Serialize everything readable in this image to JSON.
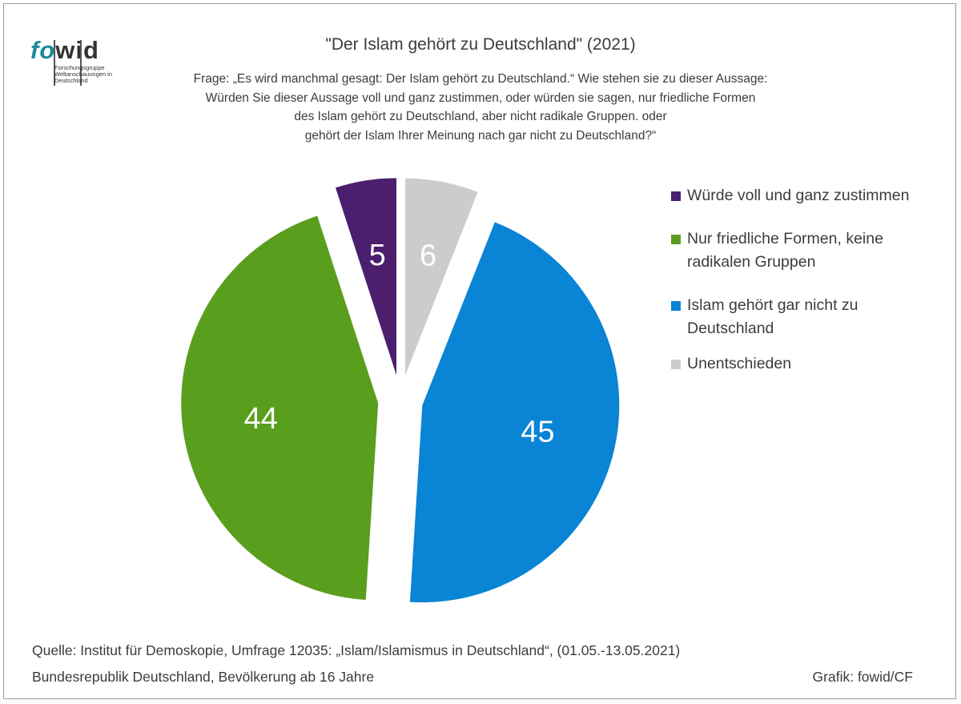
{
  "logo": {
    "fo": "fo",
    "wid": "wid",
    "subtitle": "Forschungsgruppe Weltanschauungen in Deutschland"
  },
  "title": "\"Der Islam gehört zu Deutschland\" (2021)",
  "question": "Frage: „Es wird manchmal gesagt: Der Islam gehört zu Deutschland.“  Wie stehen sie zu dieser Aussage:\nWürden Sie dieser Aussage voll und ganz zustimmen,  oder würden sie sagen, nur friedliche Formen\ndes Islam gehört zu Deutschland, aber nicht radikale Gruppen. oder\ngehört der Islam Ihrer Meinung nach gar nicht zu Deutschland?“",
  "chart_data": {
    "type": "pie",
    "title": "\"Der Islam gehört zu Deutschland\" (2021)",
    "exploded": true,
    "legend_position": "right",
    "slices": [
      {
        "label": "Würde voll und ganz zustimmen",
        "value": 5,
        "color": "#4b1e6e"
      },
      {
        "label": "Nur friedliche Formen, keine radikalen Gruppen",
        "value": 44,
        "color": "#5a9e1e"
      },
      {
        "label": "Islam gehört gar nicht zu Deutschland",
        "value": 45,
        "color": "#0a84d4"
      },
      {
        "label": "Unentschieden",
        "value": 6,
        "color": "#cccccc"
      }
    ]
  },
  "legend": [
    {
      "text": "Würde voll und ganz zustimmen",
      "color": "#4b1e6e"
    },
    {
      "text": "Nur friedliche Formen, keine radikalen Gruppen",
      "color": "#5a9e1e"
    },
    {
      "text": "Islam gehört gar nicht zu Deutschland",
      "color": "#0a84d4"
    },
    {
      "text": "Unentschieden",
      "color": "#cccccc"
    }
  ],
  "footer": {
    "source": "Quelle: Institut für Demoskopie, Umfrage 12035: „Islam/Islamismus in Deutschland“, (01.05.-13.05.2021)",
    "population": "Bundesrepublik Deutschland, Bevölkerung ab 16 Jahre",
    "credit": "Grafik: fowid/CF"
  }
}
